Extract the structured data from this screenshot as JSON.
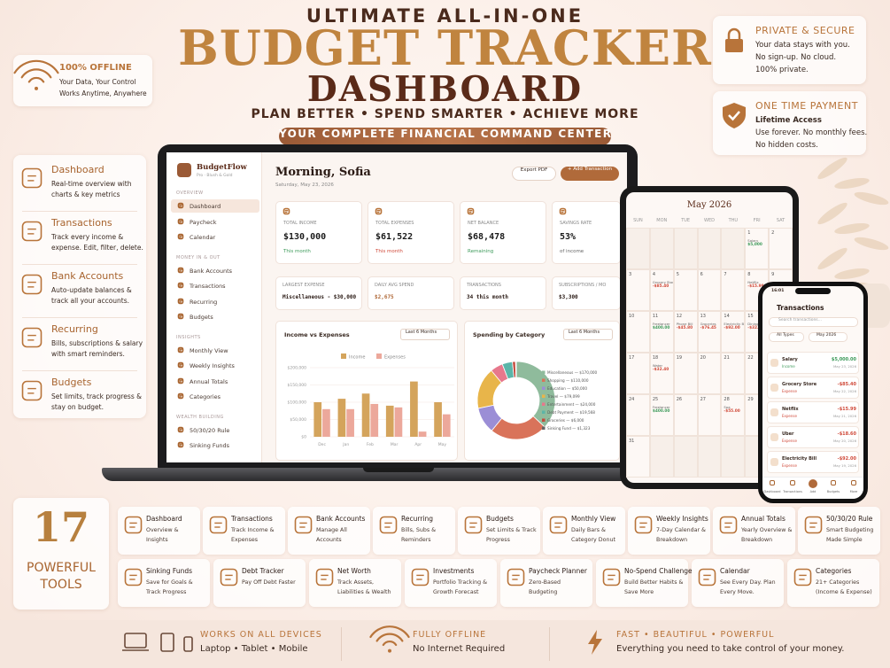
{
  "header": {
    "kicker": "ULTIMATE ALL-IN-ONE",
    "title": "BUDGET TRACKER",
    "title2": "DASHBOARD",
    "tagline": "PLAN BETTER • SPEND SMARTER • ACHIEVE MORE",
    "banner": "YOUR COMPLETE FINANCIAL COMMAND CENTER"
  },
  "offline_card": {
    "title": "100% OFFLINE",
    "lines": [
      "Your Data, Your Control",
      "Works Anytime, Anywhere"
    ]
  },
  "side_cards": [
    {
      "title": "PRIVATE & SECURE",
      "lines": [
        "Your data stays with you.",
        "No sign-up. No cloud.",
        "100% private."
      ]
    },
    {
      "title": "ONE TIME PAYMENT",
      "lines": [
        "Lifetime Access",
        "Use forever. No monthly fees.",
        "No hidden costs."
      ]
    }
  ],
  "features": [
    {
      "title": "Dashboard",
      "text": "Real-time overview with charts & key metrics"
    },
    {
      "title": "Transactions",
      "text": "Track every income & expense. Edit, filter, delete."
    },
    {
      "title": "Bank Accounts",
      "text": "Auto-update balances & track all your accounts."
    },
    {
      "title": "Recurring",
      "text": "Bills, subscriptions & salary with smart reminders."
    },
    {
      "title": "Budgets",
      "text": "Set limits, track progress & stay on budget."
    }
  ],
  "dashboard": {
    "app_name": "BudgetFlow",
    "app_sub": "Pro · Blush & Gold",
    "sidebar": [
      {
        "title": "OVERVIEW",
        "items": [
          "Dashboard",
          "Paycheck",
          "Calendar"
        ]
      },
      {
        "title": "MONEY IN & OUT",
        "items": [
          "Bank Accounts",
          "Transactions",
          "Recurring",
          "Budgets"
        ]
      },
      {
        "title": "INSIGHTS",
        "items": [
          "Monthly View",
          "Weekly Insights",
          "Annual Totals",
          "Categories"
        ]
      },
      {
        "title": "WEALTH BUILDING",
        "items": [
          "50/30/20 Rule",
          "Sinking Funds"
        ]
      }
    ],
    "greeting": "Morning, Sofia",
    "date": "Saturday, May 23, 2026",
    "export": "Export PDF",
    "add": "+ Add Transaction",
    "stats": [
      {
        "label": "TOTAL INCOME",
        "value": "$130,000",
        "note": "This month"
      },
      {
        "label": "TOTAL EXPENSES",
        "value": "$61,522",
        "note": "This month"
      },
      {
        "label": "NET BALANCE",
        "value": "$68,478",
        "note": "Remaining"
      },
      {
        "label": "SAVINGS RATE",
        "value": "53%",
        "note": "of income"
      }
    ],
    "stats2": [
      {
        "label": "LARGEST EXPENSE",
        "value": "Miscellaneous - $30,000"
      },
      {
        "label": "DAILY AVG SPEND",
        "value": "$2,675"
      },
      {
        "label": "TRANSACTIONS",
        "value": "34 this month"
      },
      {
        "label": "SUBSCRIPTIONS / MO",
        "value": "$3,300"
      }
    ],
    "income_chart": {
      "type": "bar",
      "title": "Income vs Expenses",
      "range": "Last 6 Months",
      "categories": [
        "Dec",
        "Jan",
        "Feb",
        "Mar",
        "Apr",
        "May"
      ],
      "series": [
        {
          "name": "Income",
          "color": "#d4a45c",
          "values": [
            100000,
            110000,
            125000,
            90000,
            160000,
            100000
          ]
        },
        {
          "name": "Expenses",
          "color": "#eca89b",
          "values": [
            80000,
            80000,
            95000,
            85000,
            15000,
            65000
          ]
        }
      ],
      "ylim": [
        0,
        200000
      ],
      "yticks": [
        {
          "value": 0,
          "label": "$0"
        },
        {
          "value": 50000,
          "label": "$50,000"
        },
        {
          "value": 100000,
          "label": "$100,000"
        },
        {
          "value": 150000,
          "label": "$150,000"
        },
        {
          "value": 200000,
          "label": "$200,000"
        }
      ]
    },
    "spending_chart": {
      "type": "pie",
      "title": "Spending by Category",
      "range": "Last 6 Months",
      "labels": [
        "Miscellaneous — $170,000",
        "Shopping — $110,000",
        "Education — $50,000",
        "Travel — $79,099",
        "Entertainment — $24,000",
        "Debt Payment — $19,568",
        "Groceries — $6,000",
        "Sinking Fund — $1,323"
      ],
      "values": [
        170000,
        110000,
        50000,
        79099,
        24000,
        19568,
        6000,
        1323
      ],
      "colors": [
        "#8fbb9c",
        "#d9735a",
        "#9b8ed6",
        "#e8b54a",
        "#e7788c",
        "#5bb5a8",
        "#c44a3c",
        "#666666"
      ]
    }
  },
  "tablet": {
    "month": "May 2026",
    "days": [
      "SUN",
      "MON",
      "TUE",
      "WED",
      "THU",
      "FRI",
      "SAT"
    ],
    "weeks": [
      [
        null,
        null,
        null,
        null,
        null,
        1,
        2
      ],
      [
        3,
        4,
        5,
        6,
        7,
        8,
        9
      ],
      [
        10,
        11,
        12,
        13,
        14,
        15,
        16
      ],
      [
        17,
        18,
        19,
        20,
        21,
        22,
        23
      ],
      [
        24,
        25,
        26,
        27,
        28,
        29,
        30
      ],
      [
        31,
        null,
        null,
        null,
        null,
        null,
        null
      ]
    ],
    "entries": [
      {
        "day": 1,
        "label": "Salary",
        "amount": "$5,000"
      },
      {
        "day": 4,
        "label": "Grocery Store",
        "amount": "-$85.40"
      },
      {
        "day": 8,
        "label": "Netflix",
        "amount": "-$15.99"
      },
      {
        "day": 11,
        "label": "Freelancer",
        "amount": "$400.00"
      },
      {
        "day": 12,
        "label": "Phone Bill",
        "amount": "-$45.80"
      },
      {
        "day": 13,
        "label": "Groceries",
        "amount": "-$76.45"
      },
      {
        "day": 14,
        "label": "Electricity Bill",
        "amount": "-$92.00"
      },
      {
        "day": 15,
        "label": "Dining Out",
        "amount": "-$32.50"
      },
      {
        "day": 18,
        "label": "Water",
        "amount": "-$32.40"
      },
      {
        "day": 25,
        "label": "Freelancer",
        "amount": "$400.00"
      },
      {
        "day": 28,
        "label": "Spa",
        "amount": "-$55.00"
      }
    ]
  },
  "phone": {
    "time": "16:01",
    "title": "Transactions",
    "search": "Search transactions...",
    "filter_type": "All Types",
    "filter_month": "May 2026",
    "rows": [
      {
        "name": "Salary",
        "type": "Income",
        "amount": "$5,000.00",
        "date": "May 23, 2026"
      },
      {
        "name": "Grocery Store",
        "type": "Expense",
        "amount": "-$85.40",
        "date": "May 22, 2026"
      },
      {
        "name": "Netflix",
        "type": "Expense",
        "amount": "-$15.99",
        "date": "May 21, 2026"
      },
      {
        "name": "Uber",
        "type": "Expense",
        "amount": "-$18.60",
        "date": "May 20, 2026"
      },
      {
        "name": "Electricity Bill",
        "type": "Expense",
        "amount": "-$92.00",
        "date": "May 19, 2026"
      }
    ],
    "nav": [
      "Dashboard",
      "Transactions",
      "Add",
      "Budgets",
      "More"
    ]
  },
  "tools_badge": {
    "count": "17",
    "line1": "POWERFUL",
    "line2": "TOOLS"
  },
  "tools": [
    {
      "name": "Dashboard",
      "desc": "Overview & Insights"
    },
    {
      "name": "Transactions",
      "desc": "Track Income & Expenses"
    },
    {
      "name": "Bank Accounts",
      "desc": "Manage All Accounts"
    },
    {
      "name": "Recurring",
      "desc": "Bills, Subs & Reminders"
    },
    {
      "name": "Budgets",
      "desc": "Set Limits & Track Progress"
    },
    {
      "name": "Monthly View",
      "desc": "Daily Bars & Category Donut"
    },
    {
      "name": "Weekly Insights",
      "desc": "7-Day Calendar & Breakdown"
    },
    {
      "name": "Annual Totals",
      "desc": "Yearly Overview & Breakdown"
    },
    {
      "name": "50/30/20 Rule",
      "desc": "Smart Budgeting Made Simple"
    },
    {
      "name": "Sinking Funds",
      "desc": "Save for Goals & Track Progress"
    },
    {
      "name": "Debt Tracker",
      "desc": "Pay Off Debt Faster"
    },
    {
      "name": "Net Worth",
      "desc": "Track Assets, Liabilities & Wealth"
    },
    {
      "name": "Investments",
      "desc": "Portfolio Tracking & Growth Forecast"
    },
    {
      "name": "Paycheck Planner",
      "desc": "Zero-Based Budgeting"
    },
    {
      "name": "No-Spend Challenge",
      "desc": "Build Better Habits & Save More"
    },
    {
      "name": "Calendar",
      "desc": "See Every Day. Plan Every Move."
    },
    {
      "name": "Categories",
      "desc": "21+ Categories (Income & Expense)"
    }
  ],
  "footer": [
    {
      "title": "WORKS ON ALL DEVICES",
      "text": "Laptop • Tablet • Mobile"
    },
    {
      "title": "FULLY OFFLINE",
      "text": "No Internet Required"
    },
    {
      "title": "FAST • BEAUTIFUL • POWERFUL",
      "text": "Everything you need to take control of your money."
    }
  ]
}
